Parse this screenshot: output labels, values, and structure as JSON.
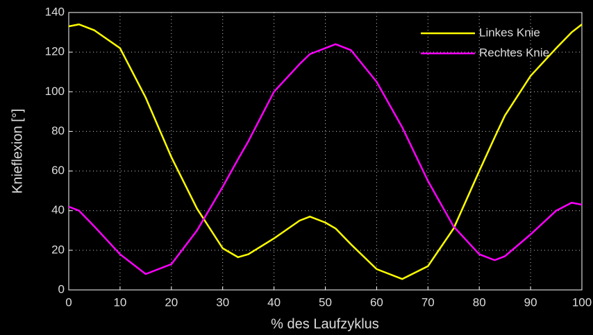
{
  "chart_data": {
    "type": "line",
    "xlabel": "% des Laufzyklus",
    "ylabel": "Knieflexion [°]",
    "x": [
      0,
      2,
      5,
      10,
      15,
      20,
      25,
      30,
      33,
      35,
      40,
      45,
      47,
      50,
      52,
      55,
      60,
      65,
      70,
      75,
      80,
      83,
      85,
      90,
      95,
      98,
      100
    ],
    "series": [
      {
        "name": "Linkes Knie",
        "color": "#ffff00",
        "values": [
          133,
          134,
          131,
          122,
          97,
          67,
          41,
          21,
          16.5,
          18,
          26,
          35,
          37,
          34,
          31,
          23,
          10.5,
          5.5,
          12,
          31,
          60,
          77,
          88,
          108,
          122,
          130,
          134
        ]
      },
      {
        "name": "Rechtes Knie",
        "color": "#ff00ff",
        "values": [
          42,
          40,
          32,
          18,
          8,
          13,
          30,
          52,
          66,
          75,
          100,
          114,
          119,
          122,
          124,
          121,
          105,
          82,
          55,
          32,
          18,
          15,
          17,
          28,
          40,
          44,
          43
        ]
      }
    ],
    "xlim": [
      0,
      100
    ],
    "xticks": [
      0,
      10,
      20,
      30,
      40,
      50,
      60,
      70,
      80,
      90,
      100
    ],
    "ylim": [
      0,
      140
    ],
    "yticks": [
      0,
      20,
      40,
      60,
      80,
      100,
      120,
      140
    ],
    "grid": true,
    "legend": "northeast"
  }
}
